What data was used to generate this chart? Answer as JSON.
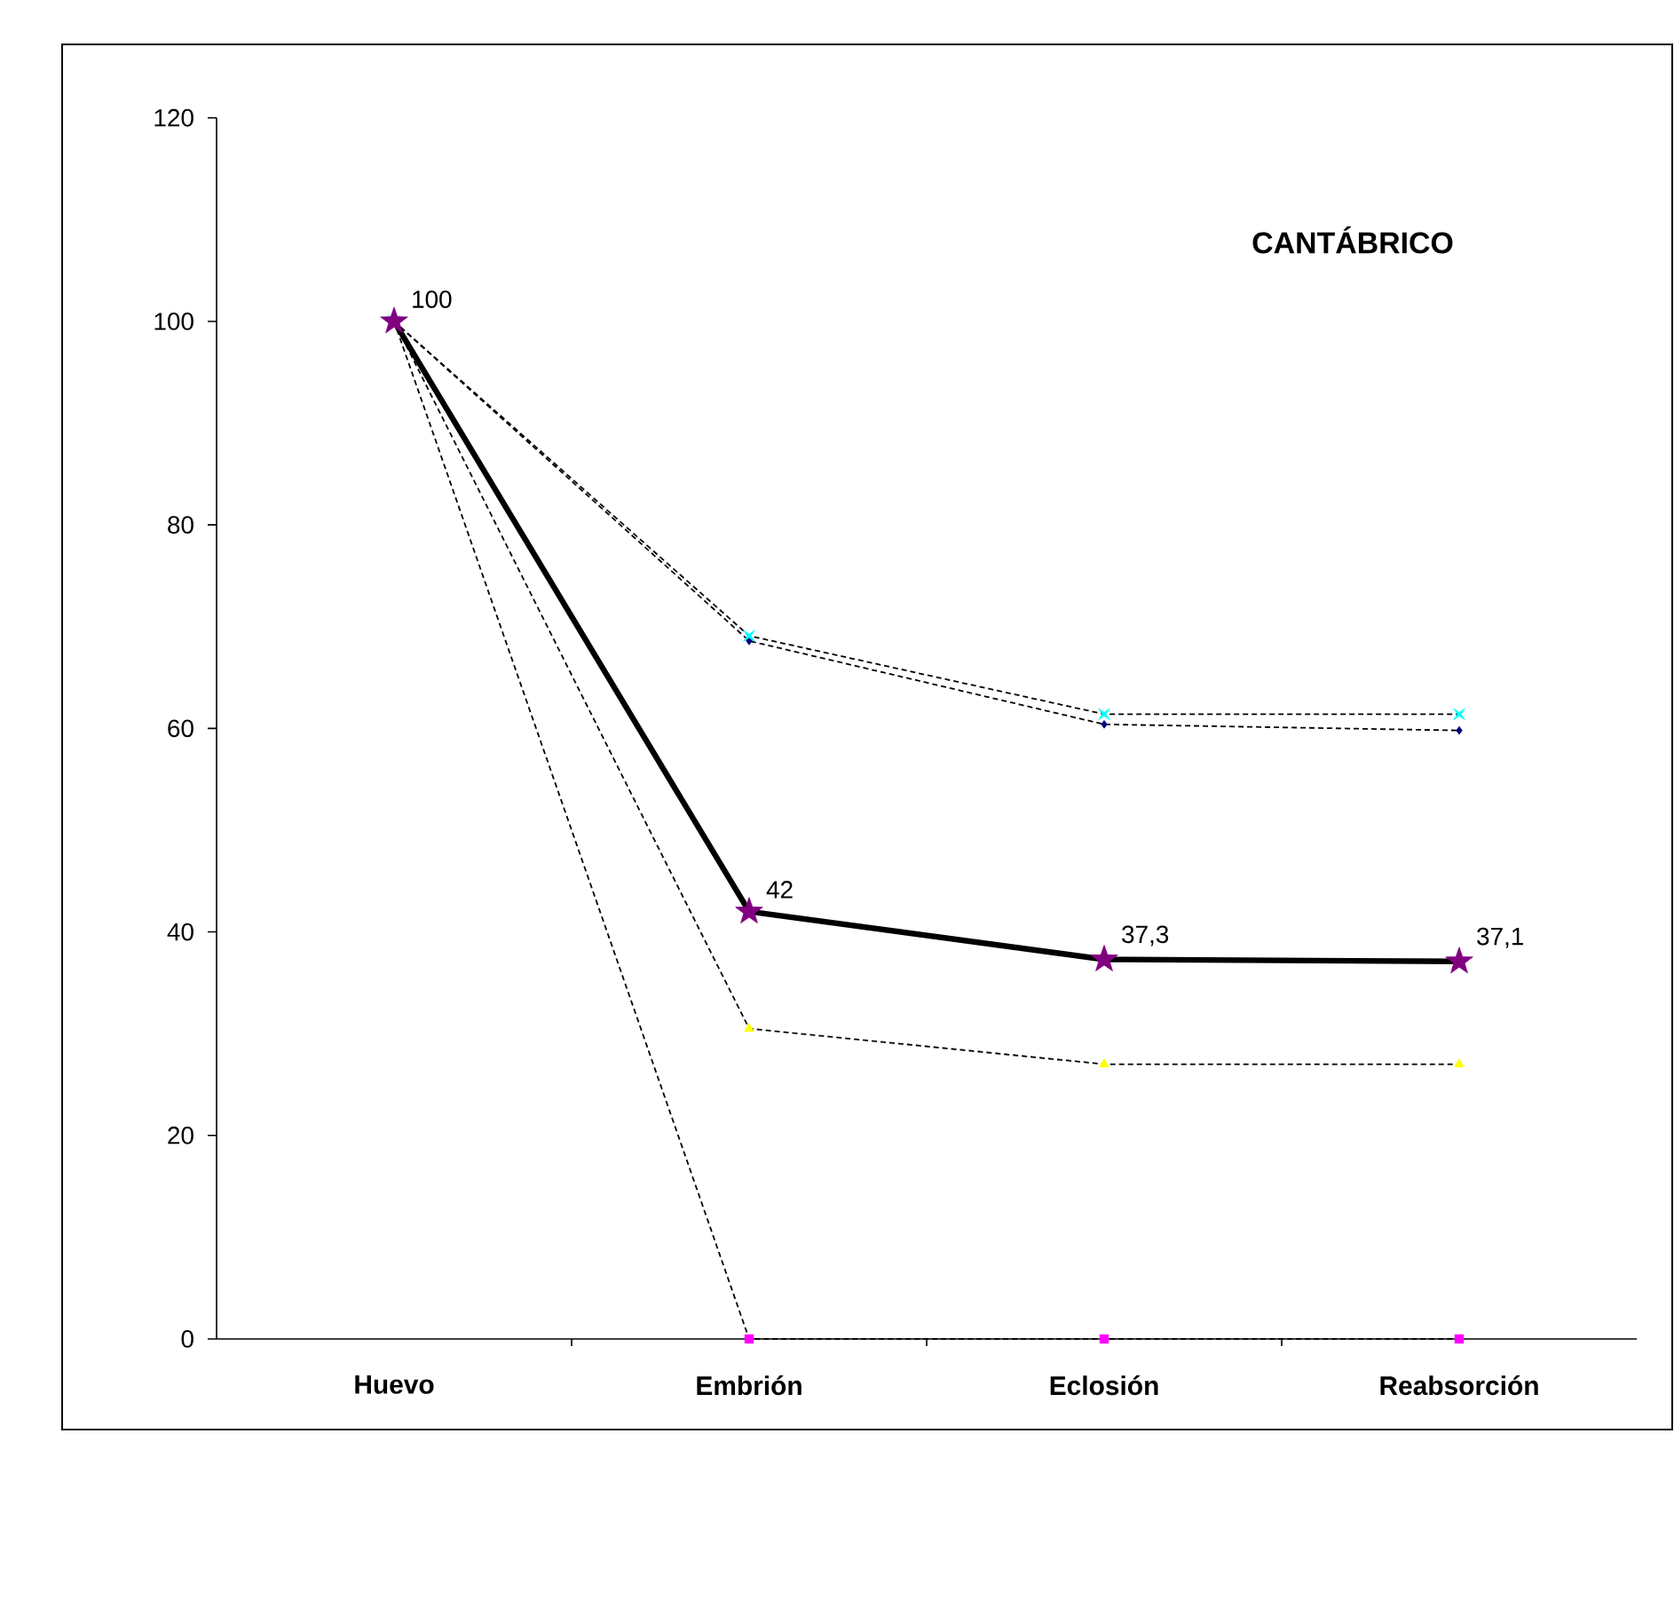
{
  "chart_data": {
    "type": "line",
    "title": "CANTÁBRICO",
    "categories": [
      "Huevo",
      "Embrión",
      "Eclosión",
      "Reabsorción"
    ],
    "ylim": [
      0,
      120
    ],
    "yticks": [
      0,
      20,
      40,
      60,
      80,
      100,
      120
    ],
    "grid": false,
    "series": [
      {
        "color": "#000080",
        "marker": "diamond",
        "line_style": "dashed",
        "values": [
          100,
          68.6,
          60.4,
          59.8
        ]
      },
      {
        "color": "#00ffff",
        "marker": "cross",
        "line_style": "dashed",
        "values": [
          100,
          69.1,
          61.4,
          61.4
        ]
      },
      {
        "color": "#ffff00",
        "marker": "triangle",
        "line_style": "dashed",
        "values": [
          100,
          30.5,
          27.0,
          27.0
        ]
      },
      {
        "color": "#ff00ff",
        "marker": "square",
        "line_style": "dashed",
        "values": [
          100,
          0,
          0,
          0
        ]
      },
      {
        "color": "#800080",
        "marker": "star",
        "line_style": "solid",
        "values": [
          100,
          42,
          37.3,
          37.1
        ],
        "value_labels": [
          "100",
          "42",
          "37,3",
          "37,1"
        ]
      }
    ]
  }
}
